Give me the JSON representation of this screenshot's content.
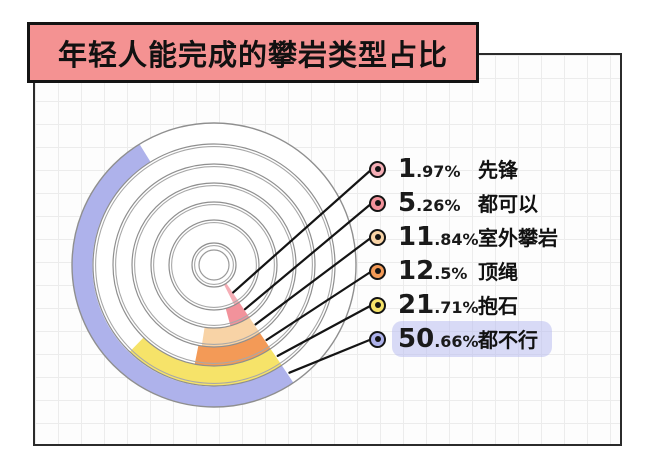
{
  "title": {
    "text": "年轻人能完成的攀岩类型占比"
  },
  "chart_data": {
    "type": "pie",
    "subtype": "concentric-radial-arcs",
    "title": "年轻人能完成的攀岩类型占比",
    "unit": "%",
    "categories": [
      "先锋",
      "都可以",
      "室外攀岩",
      "顶绳",
      "抱石",
      "都不行"
    ],
    "values": [
      1.97,
      5.26,
      11.84,
      12.5,
      21.71,
      50.66
    ],
    "colors": [
      "#F5AEB6",
      "#F2929B",
      "#F8D3A6",
      "#F39A57",
      "#F6E369",
      "#AEB2EB"
    ],
    "start_angle_deg": 146,
    "direction": "clockwise",
    "rings": "innermost = smallest value, outermost = largest value",
    "legend_position": "right",
    "grid": true,
    "highlighted_category": "都不行"
  },
  "legend": {
    "items": [
      {
        "int_part": "1",
        "frac_part": ".97%",
        "label": "先锋",
        "highlighted": false
      },
      {
        "int_part": "5",
        "frac_part": ".26%",
        "label": "都可以",
        "highlighted": false
      },
      {
        "int_part": "11",
        "frac_part": ".84%",
        "label": "室外攀岩",
        "highlighted": false
      },
      {
        "int_part": "12",
        "frac_part": ".5%",
        "label": "顶绳",
        "highlighted": false
      },
      {
        "int_part": "21",
        "frac_part": ".71%",
        "label": "抱石",
        "highlighted": false
      },
      {
        "int_part": "50",
        "frac_part": ".66%",
        "label": "都不行",
        "highlighted": true
      }
    ]
  },
  "style_colors": {
    "banner_bg": "#F49292",
    "frame_border": "#2B2B2B",
    "grid_line": "#ECECEC",
    "ring_stroke": "#8F8F8F",
    "leader_line": "#141414",
    "highlight_pill": "#CED1F4"
  }
}
